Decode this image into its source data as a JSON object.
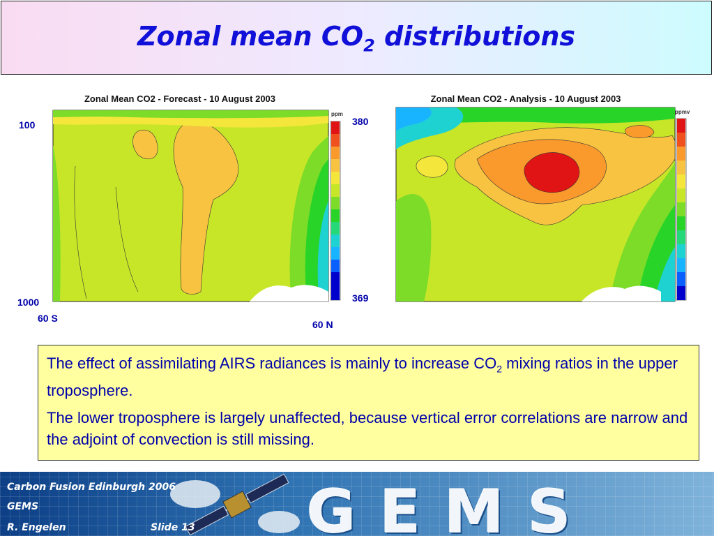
{
  "title": {
    "main": "Zonal mean CO",
    "sub": "2",
    "tail": " distributions"
  },
  "plots": {
    "forecast": {
      "title": "Zonal Mean CO2 - Forecast - 10 August 2003",
      "unit": "ppm"
    },
    "analysis": {
      "title": "Zonal Mean CO2 - Analysis - 10 August 2003",
      "unit": "ppmv"
    }
  },
  "annotations": {
    "top_pressure": "100",
    "bottom_pressure": "1000",
    "south": "60 S",
    "north": "60 N",
    "scale_max": "380",
    "scale_min": "369"
  },
  "note": {
    "p1_main": "The effect of assimilating AIRS radiances is mainly to increase CO",
    "p1_sub": "2",
    "p1_tail": " mixing ratios in the upper troposphere.",
    "p2": "The lower troposphere is largely unaffected, because vertical error correlations are narrow and the adjoint of convection is still missing."
  },
  "footer": {
    "line1": "Carbon Fusion Edinburgh 2006",
    "line2": "GEMS",
    "author": "R. Engelen",
    "slide": "Slide 13",
    "logo": "GEMS"
  },
  "colors": {
    "title_text": "#1010d8",
    "body_text": "#0000aa",
    "note_background": "#ffffa0",
    "colorbar": [
      "#0000cc",
      "#0a60ff",
      "#19b4ff",
      "#1fd2d2",
      "#25d878",
      "#28d428",
      "#7cdc28",
      "#c8e628",
      "#f5e63c",
      "#f7c340",
      "#fa9a2d",
      "#f0501e",
      "#e01414"
    ]
  }
}
